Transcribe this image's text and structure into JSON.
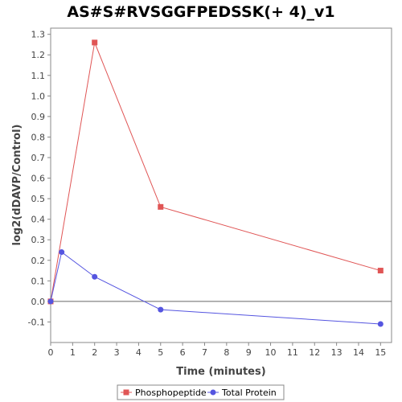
{
  "chart_data": {
    "type": "line",
    "title": "AS#S#RVSGGFPEDSSK(+ 4)_v1",
    "xlabel": "Time (minutes)",
    "ylabel": "log2(dDAVP/Control)",
    "xlim": [
      0,
      15.5
    ],
    "ylim": [
      -0.2,
      1.33
    ],
    "xticks": [
      0,
      1,
      2,
      3,
      4,
      5,
      6,
      7,
      8,
      9,
      10,
      11,
      12,
      13,
      14,
      15
    ],
    "yticks": [
      -0.1,
      0.0,
      0.1,
      0.2,
      0.3,
      0.4,
      0.5,
      0.6,
      0.7,
      0.8,
      0.9,
      1.0,
      1.1,
      1.2,
      1.3
    ],
    "grid": false,
    "zero_line": true,
    "legend_position": "bottom",
    "series": [
      {
        "name": "Phosphopeptide",
        "color": "#e05555",
        "marker": "square",
        "x": [
          0,
          2,
          5,
          15
        ],
        "y": [
          0.0,
          1.26,
          0.46,
          0.15
        ]
      },
      {
        "name": "Total Protein",
        "color": "#5555e0",
        "marker": "circle",
        "x": [
          0,
          0.5,
          2,
          5,
          15
        ],
        "y": [
          0.0,
          0.24,
          0.12,
          -0.04,
          -0.11
        ]
      }
    ]
  }
}
